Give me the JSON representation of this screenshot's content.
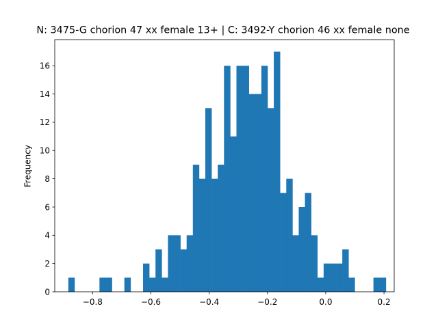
{
  "chart_data": {
    "type": "bar",
    "title": "N: 3475-G chorion 47 xx female 13+ | C: 3492-Y chorion 46 xx female none",
    "xlabel": "",
    "ylabel": "Frequency",
    "bar_color": "#1f77b4",
    "xlim": [
      -0.93,
      0.235
    ],
    "ylim": [
      0,
      17.85
    ],
    "x_ticks": [
      -0.8,
      -0.6,
      -0.4,
      -0.2,
      0.0,
      0.2
    ],
    "x_tick_labels": [
      "−0.8",
      "−0.6",
      "−0.4",
      "−0.2",
      "0.0",
      "0.2"
    ],
    "y_ticks": [
      0,
      2,
      4,
      6,
      8,
      10,
      12,
      14,
      16
    ],
    "y_tick_labels": [
      "0",
      "2",
      "4",
      "6",
      "8",
      "10",
      "12",
      "14",
      "16"
    ],
    "bin_start": -0.8834,
    "bin_width": 0.02137,
    "values": [
      1,
      0,
      0,
      0,
      0,
      1,
      1,
      0,
      0,
      1,
      0,
      0,
      2,
      1,
      3,
      1,
      4,
      4,
      3,
      4,
      9,
      8,
      13,
      8,
      9,
      16,
      11,
      16,
      16,
      14,
      14,
      16,
      13,
      17,
      7,
      8,
      4,
      6,
      7,
      4,
      1,
      2,
      2,
      2,
      3,
      1,
      0,
      0,
      0,
      1,
      1
    ]
  }
}
